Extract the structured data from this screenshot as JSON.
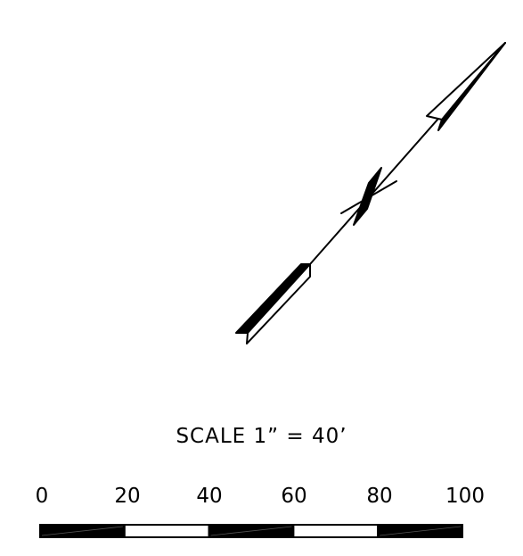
{
  "scale": {
    "title": "SCALE 1” = 40’",
    "tick_labels": [
      "0",
      "20",
      "40",
      "60",
      "80",
      "100"
    ],
    "bar_segments": [
      "filled",
      "empty",
      "filled",
      "empty",
      "filled"
    ]
  },
  "colors": {
    "ink": "#000000",
    "paper": "#ffffff"
  }
}
